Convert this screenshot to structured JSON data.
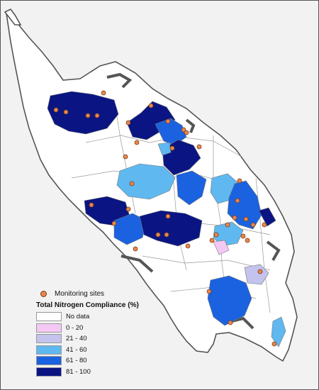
{
  "legend": {
    "site_label": "Monitoring sites",
    "title": "Total Nitrogen Compliance (%)",
    "classes": [
      {
        "label": "No data",
        "color": "#ffffff"
      },
      {
        "label": "0 - 20",
        "color": "#f4c8f4"
      },
      {
        "label": "21 - 40",
        "color": "#c3c3ee"
      },
      {
        "label": "41 - 60",
        "color": "#5fb8f0"
      },
      {
        "label": "61 - 80",
        "color": "#1a62e0"
      },
      {
        "label": "81 - 100",
        "color": "#0a1583"
      }
    ]
  },
  "colors": {
    "background": "#f2f2f2",
    "coastline": "#555555",
    "site_marker": "#e6874f"
  }
}
